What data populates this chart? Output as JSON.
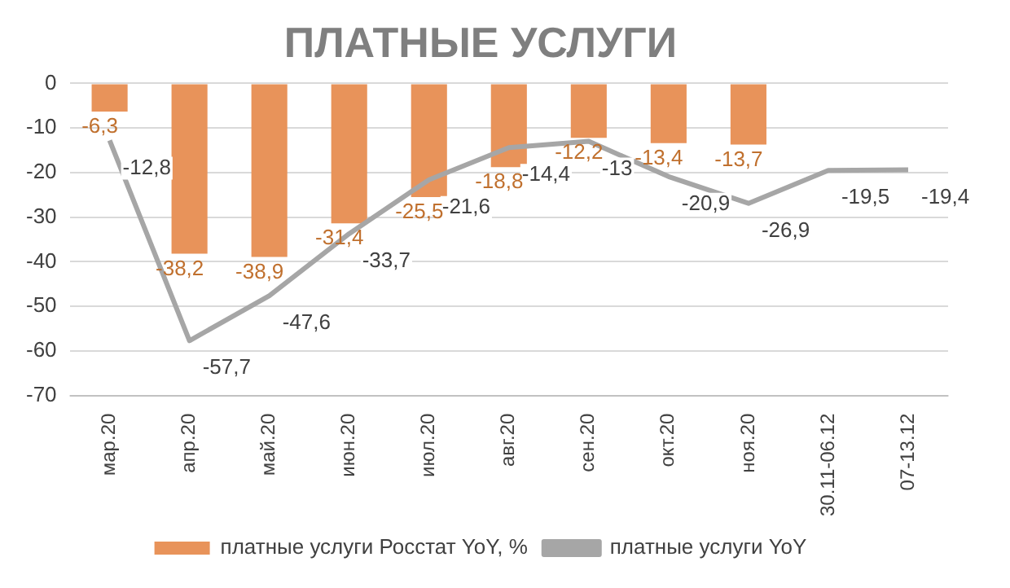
{
  "chart_data": {
    "type": "bar",
    "title": "ПЛАТНЫЕ УСЛУГИ",
    "categories": [
      "мар.20",
      "апр.20",
      "май.20",
      "июн.20",
      "июл.20",
      "авг.20",
      "сен.20",
      "окт.20",
      "ноя.20",
      "30.11-06.12",
      "07-13.12"
    ],
    "series": [
      {
        "name": "платные услуги Росстат YoY, %",
        "color": "#e8935a",
        "values": [
          -6.3,
          -38.2,
          -38.9,
          -31.4,
          -25.5,
          -18.8,
          -12.2,
          -13.4,
          -13.7,
          null,
          null
        ],
        "value_labels": [
          "-6,3",
          "-38,2",
          "-38,9",
          "-31,4",
          "-25,5",
          "-18,8",
          "-12,2",
          "-13,4",
          "-13,7",
          null,
          null
        ]
      },
      {
        "name": "платные услуги YoY",
        "type": "line",
        "color": "#a6a6a6",
        "values": [
          -12.8,
          -57.7,
          -47.6,
          -33.7,
          -21.6,
          -14.4,
          -13,
          -20.9,
          -26.9,
          -19.5,
          -19.4
        ],
        "value_labels": [
          "-12,8",
          "-57,7",
          "-47,6",
          "-33,7",
          "-21,6",
          "-14,4",
          "-13",
          "-20,9",
          "-26,9",
          "-19,5",
          "-19,4"
        ]
      }
    ],
    "ylim": [
      -70,
      0
    ],
    "yticks": [
      0,
      -10,
      -20,
      -30,
      -40,
      -50,
      -60,
      -70
    ],
    "grid": "y",
    "legend": "bottom",
    "marker": "none",
    "line_style": "solid"
  }
}
